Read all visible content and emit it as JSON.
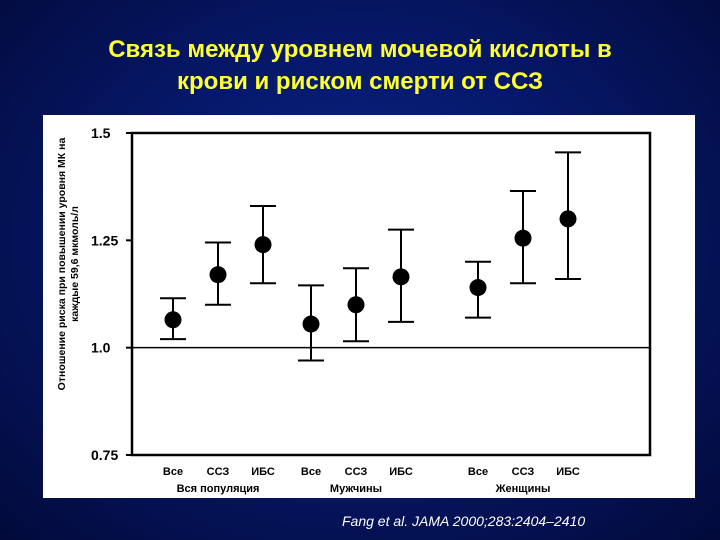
{
  "slide": {
    "title_line1": "Связь между уровнем мочевой кислоты в",
    "title_line2": "крови и риском смерти от ССЗ",
    "citation": "Fang et al. JAMA 2000;283:2404–2410"
  },
  "chart_data": {
    "type": "scatter",
    "ylabel_line1": "Отношение риска при повышении уровня МК на",
    "ylabel_line2": "каждые 59,6 мкмоль/л",
    "ylim": [
      0.75,
      1.5
    ],
    "yticks": [
      "1.5",
      "1.25",
      "1.0",
      "0.75"
    ],
    "ytick_values": [
      1.5,
      1.25,
      1.0,
      0.75
    ],
    "reference_line": 1.0,
    "grid": false,
    "groups": [
      {
        "name": "Вся популяция",
        "points": [
          {
            "label": "Все",
            "value": 1.065,
            "low": 1.02,
            "high": 1.115
          },
          {
            "label": "ССЗ",
            "value": 1.17,
            "low": 1.1,
            "high": 1.245
          },
          {
            "label": "ИБС",
            "value": 1.24,
            "low": 1.15,
            "high": 1.33
          }
        ]
      },
      {
        "name": "Мужчины",
        "points": [
          {
            "label": "Все",
            "value": 1.055,
            "low": 0.97,
            "high": 1.145
          },
          {
            "label": "ССЗ",
            "value": 1.1,
            "low": 1.015,
            "high": 1.185
          },
          {
            "label": "ИБС",
            "value": 1.165,
            "low": 1.06,
            "high": 1.275
          }
        ]
      },
      {
        "name": "Женщины",
        "points": [
          {
            "label": "Все",
            "value": 1.14,
            "low": 1.07,
            "high": 1.2
          },
          {
            "label": "ССЗ",
            "value": 1.255,
            "low": 1.15,
            "high": 1.365
          },
          {
            "label": "ИБС",
            "value": 1.3,
            "low": 1.16,
            "high": 1.455
          }
        ]
      }
    ]
  }
}
